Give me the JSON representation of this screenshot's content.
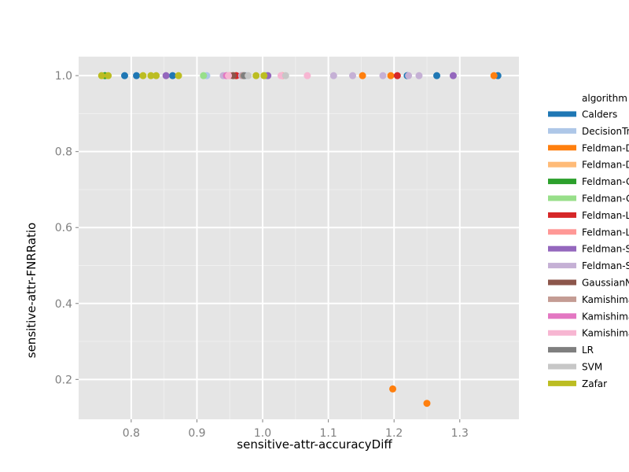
{
  "chart_data": {
    "type": "scatter",
    "title": "",
    "xlabel": "sensitive-attr-accuracyDiff",
    "ylabel": "sensitive-attr-FNRRatio",
    "xlim": [
      0.72,
      1.39
    ],
    "ylim": [
      0.095,
      1.05
    ],
    "x_ticks": [
      {
        "value": 0.8,
        "label": "0.8"
      },
      {
        "value": 0.9,
        "label": "0.9"
      },
      {
        "value": 1.0,
        "label": "1.0"
      },
      {
        "value": 1.1,
        "label": "1.1"
      },
      {
        "value": 1.2,
        "label": "1.2"
      },
      {
        "value": 1.3,
        "label": "1.3"
      }
    ],
    "y_ticks": [
      {
        "value": 0.2,
        "label": "0.2"
      },
      {
        "value": 0.4,
        "label": "0.4"
      },
      {
        "value": 0.6,
        "label": "0.6"
      },
      {
        "value": 0.8,
        "label": "0.8"
      },
      {
        "value": 1.0,
        "label": "1.0"
      }
    ],
    "grid": true,
    "background": "#e5e5e5",
    "legend": {
      "title": "algorithm",
      "placement": "right"
    },
    "series": [
      {
        "name": "Calders",
        "color": "#1f77b4",
        "points": [
          [
            0.79,
            1.0
          ],
          [
            0.808,
            1.0
          ],
          [
            0.863,
            1.0
          ],
          [
            1.22,
            1.0
          ],
          [
            1.265,
            1.0
          ],
          [
            1.358,
            1.0
          ]
        ]
      },
      {
        "name": "DecisionTree",
        "color": "#aec7e8",
        "points": [
          [
            0.915,
            1.0
          ],
          [
            0.975,
            1.0
          ]
        ]
      },
      {
        "name": "Feldman-DecisionTree",
        "color": "#ff7f0e",
        "points": [
          [
            1.152,
            1.0
          ],
          [
            1.195,
            1.0
          ],
          [
            1.352,
            1.0
          ],
          [
            1.198,
            0.175
          ],
          [
            1.25,
            0.137
          ]
        ]
      },
      {
        "name": "Feldman-DecisionTree-numerical",
        "color": "#ffbb78",
        "points": [
          [
            0.958,
            1.0
          ]
        ]
      },
      {
        "name": "Feldman-GaussianNB",
        "color": "#2ca02c",
        "points": [
          [
            0.76,
            1.0
          ]
        ]
      },
      {
        "name": "Feldman-GaussianNB-numerical",
        "color": "#98df8a",
        "points": [
          [
            0.91,
            1.0
          ],
          [
            1.005,
            1.0
          ]
        ]
      },
      {
        "name": "Feldman-LR",
        "color": "#d62728",
        "points": [
          [
            0.96,
            1.0
          ],
          [
            1.205,
            1.0
          ]
        ]
      },
      {
        "name": "Feldman-LR-numerical",
        "color": "#ff9896",
        "points": [
          [
            0.95,
            1.0
          ],
          [
            1.03,
            1.0
          ]
        ]
      },
      {
        "name": "Feldman-SVM",
        "color": "#9467bd",
        "points": [
          [
            0.853,
            1.0
          ],
          [
            1.008,
            1.0
          ],
          [
            1.29,
            1.0
          ]
        ]
      },
      {
        "name": "Feldman-SVM-numerical",
        "color": "#c5b0d5",
        "points": [
          [
            0.94,
            1.0
          ],
          [
            0.968,
            1.0
          ],
          [
            1.108,
            1.0
          ],
          [
            1.137,
            1.0
          ],
          [
            1.183,
            1.0
          ],
          [
            1.222,
            1.0
          ],
          [
            1.238,
            1.0
          ]
        ]
      },
      {
        "name": "GaussianNB",
        "color": "#8c564b",
        "points": [
          [
            0.955,
            1.0
          ]
        ]
      },
      {
        "name": "Kamishima",
        "color": "#c49c94",
        "points": [
          [
            0.97,
            1.0
          ]
        ]
      },
      {
        "name": "Kamishima-accuracy",
        "color": "#e377c2",
        "points": [
          [
            0.945,
            1.0
          ]
        ]
      },
      {
        "name": "Kamishima-numerical",
        "color": "#f7b6d2",
        "points": [
          [
            0.948,
            1.0
          ],
          [
            1.028,
            1.0
          ],
          [
            1.068,
            1.0
          ]
        ]
      },
      {
        "name": "LR",
        "color": "#7f7f7f",
        "points": [
          [
            0.972,
            1.0
          ]
        ]
      },
      {
        "name": "SVM",
        "color": "#c7c7c7",
        "points": [
          [
            0.978,
            1.0
          ],
          [
            1.035,
            1.0
          ]
        ]
      },
      {
        "name": "Zafar",
        "color": "#bcbd22",
        "points": [
          [
            0.755,
            1.0
          ],
          [
            0.765,
            1.0
          ],
          [
            0.818,
            1.0
          ],
          [
            0.83,
            1.0
          ],
          [
            0.838,
            1.0
          ],
          [
            0.872,
            1.0
          ],
          [
            0.99,
            1.0
          ],
          [
            1.002,
            1.0
          ]
        ]
      }
    ]
  }
}
